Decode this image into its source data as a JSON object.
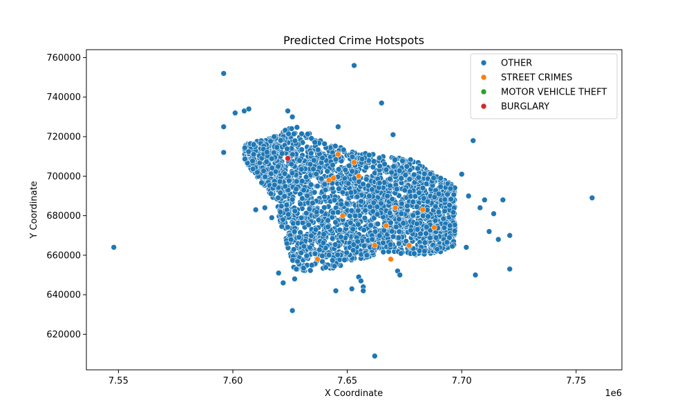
{
  "chart_data": {
    "type": "scatter",
    "title": "Predicted Crime Hotspots",
    "xlabel": "X Coordinate",
    "ylabel": "Y Coordinate",
    "x_offset_label": "1e6",
    "xlim": [
      7536000,
      7770000
    ],
    "ylim": [
      602000,
      764000
    ],
    "xticks": [
      7550000,
      7600000,
      7650000,
      7700000,
      7750000
    ],
    "xtick_labels": [
      "7.55",
      "7.60",
      "7.65",
      "7.70",
      "7.75"
    ],
    "yticks": [
      620000,
      640000,
      660000,
      680000,
      700000,
      720000,
      740000,
      760000
    ],
    "ytick_labels": [
      "620000",
      "640000",
      "660000",
      "680000",
      "700000",
      "720000",
      "740000",
      "760000"
    ],
    "grid": false,
    "legend": {
      "position": "top-right",
      "entries": [
        "OTHER",
        "STREET CRIMES",
        "MOTOR VEHICLE THEFT",
        "BURGLARY"
      ]
    },
    "colors": {
      "OTHER": "#1f77b4",
      "STREET CRIMES": "#ff7f0e",
      "MOTOR VEHICLE THEFT": "#2ca02c",
      "BURGLARY": "#d62728"
    },
    "series": [
      {
        "name": "OTHER",
        "x": [
          7548000,
          7596000,
          7596000,
          7596000,
          7601000,
          7605000,
          7607000,
          7610000,
          7614000,
          7617000,
          7620000,
          7622000,
          7624000,
          7626000,
          7626000,
          7627000,
          7645000,
          7646000,
          7652000,
          7653000,
          7655000,
          7656000,
          7657000,
          7657000,
          7662000,
          7665000,
          7670000,
          7672000,
          7673000,
          7700000,
          7702000,
          7703000,
          7705000,
          7706000,
          7708000,
          7710000,
          7712000,
          7714000,
          7716000,
          7718000,
          7721000,
          7721000,
          7757000
        ],
        "y": [
          664000,
          752000,
          725000,
          712000,
          732000,
          733000,
          734000,
          683000,
          684000,
          679000,
          651000,
          646000,
          733000,
          730000,
          632000,
          648000,
          642000,
          725000,
          643000,
          756000,
          649000,
          647000,
          644000,
          642000,
          609000,
          737000,
          721000,
          652000,
          650000,
          701000,
          664000,
          690000,
          718000,
          650000,
          684000,
          688000,
          672000,
          681000,
          668000,
          688000,
          670000,
          653000,
          689000
        ]
      },
      {
        "name": "STREET CRIMES",
        "x": [
          7637000,
          7642000,
          7644000,
          7646000,
          7648000,
          7653000,
          7655000,
          7662000,
          7667000,
          7669000,
          7671000,
          7677000,
          7683000,
          7688000
        ],
        "y": [
          658000,
          698000,
          699000,
          711000,
          680000,
          707000,
          700000,
          665000,
          675000,
          658000,
          684000,
          665000,
          683000,
          674000
        ]
      },
      {
        "name": "MOTOR VEHICLE THEFT",
        "x": [],
        "y": []
      },
      {
        "name": "BURGLARY",
        "x": [
          7624000
        ],
        "y": [
          709000
        ]
      }
    ]
  }
}
